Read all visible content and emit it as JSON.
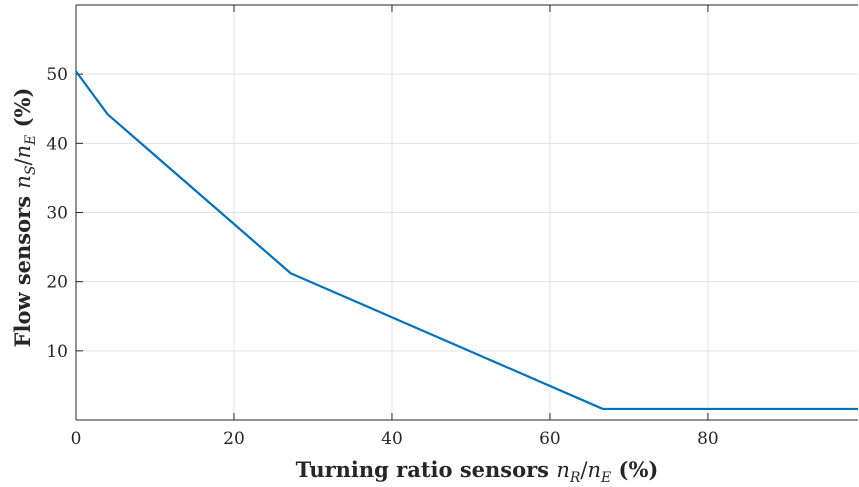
{
  "chart_data": {
    "type": "line",
    "xlabel": "Turning ratio sensors n_R/n_E (%)",
    "ylabel": "Flow sensors n_S/n_E (%)",
    "xlabel_parts": {
      "prefix": "Turning ratio sensors ",
      "num": "n",
      "num_sub": "R",
      "den": "n",
      "den_sub": "E",
      "suffix": " (%)"
    },
    "ylabel_parts": {
      "prefix": "Flow sensors ",
      "num": "n",
      "num_sub": "S",
      "den": "n",
      "den_sub": "E",
      "suffix": " (%)"
    },
    "xlim": [
      0,
      99
    ],
    "ylim": [
      0,
      60
    ],
    "xticks": [
      0,
      20,
      40,
      60,
      80
    ],
    "yticks": [
      10,
      20,
      30,
      40,
      50
    ],
    "grid": true,
    "series": [
      {
        "color": "#0072bd",
        "x": [
          0,
          4,
          27.2,
          66.7,
          99
        ],
        "y": [
          50.4,
          44.2,
          21.2,
          1.6,
          1.6
        ]
      }
    ]
  }
}
